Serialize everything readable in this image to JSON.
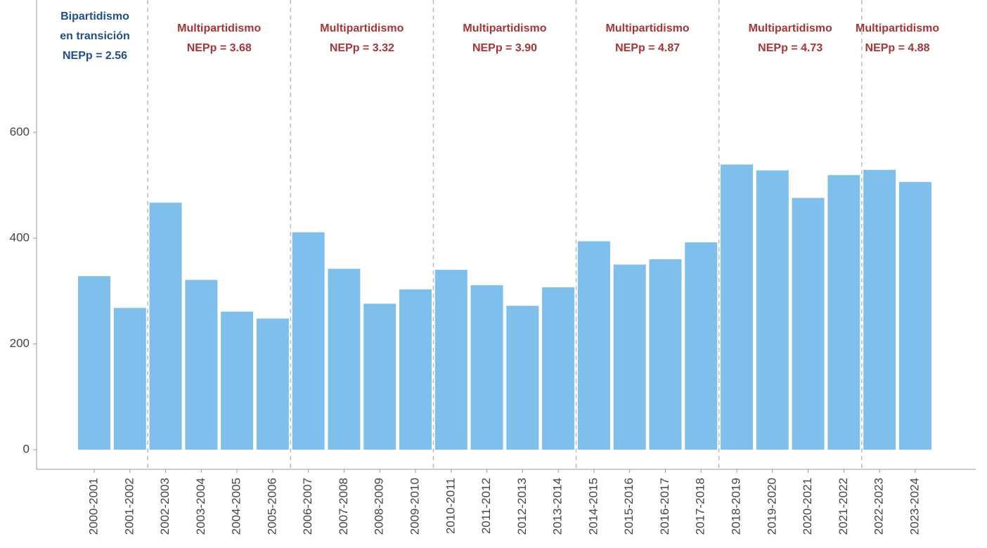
{
  "chart_data": {
    "type": "bar",
    "categories": [
      "2000-2001",
      "2001-2002",
      "2002-2003",
      "2003-2004",
      "2004-2005",
      "2005-2006",
      "2006-2007",
      "2007-2008",
      "2008-2009",
      "2009-2010",
      "2010-2011",
      "2011-2012",
      "2012-2013",
      "2013-2014",
      "2014-2015",
      "2015-2016",
      "2016-2017",
      "2017-2018",
      "2018-2019",
      "2019-2020",
      "2020-2021",
      "2021-2022",
      "2022-2023",
      "2023-2024"
    ],
    "values": [
      328,
      268,
      467,
      321,
      261,
      248,
      411,
      342,
      276,
      303,
      340,
      311,
      272,
      307,
      394,
      350,
      360,
      392,
      539,
      528,
      476,
      519,
      529,
      506
    ],
    "color": "#7fbfec",
    "ylim": [
      -37,
      850
    ],
    "yticks": [
      0,
      200,
      400,
      600
    ],
    "grid": false,
    "annotations": [
      {
        "lines": [
          "Bipartidismo",
          "en transición",
          "NEPp = 2.56"
        ],
        "color": "#1f4e8c"
      },
      {
        "lines": [
          "Multipartidismo",
          "NEPp = 3.68"
        ],
        "color": "#a83434"
      },
      {
        "lines": [
          "Multipartidismo",
          "NEPp = 3.32"
        ],
        "color": "#a83434"
      },
      {
        "lines": [
          "Multipartidismo",
          "NEPp = 3.90"
        ],
        "color": "#a83434"
      },
      {
        "lines": [
          "Multipartidismo",
          "NEPp = 4.87"
        ],
        "color": "#a83434"
      },
      {
        "lines": [
          "Multipartidismo",
          "NEPp = 4.73"
        ],
        "color": "#a83434"
      },
      {
        "lines": [
          "Multipartidismo",
          "NEPp = 4.88"
        ],
        "color": "#a83434"
      }
    ]
  }
}
